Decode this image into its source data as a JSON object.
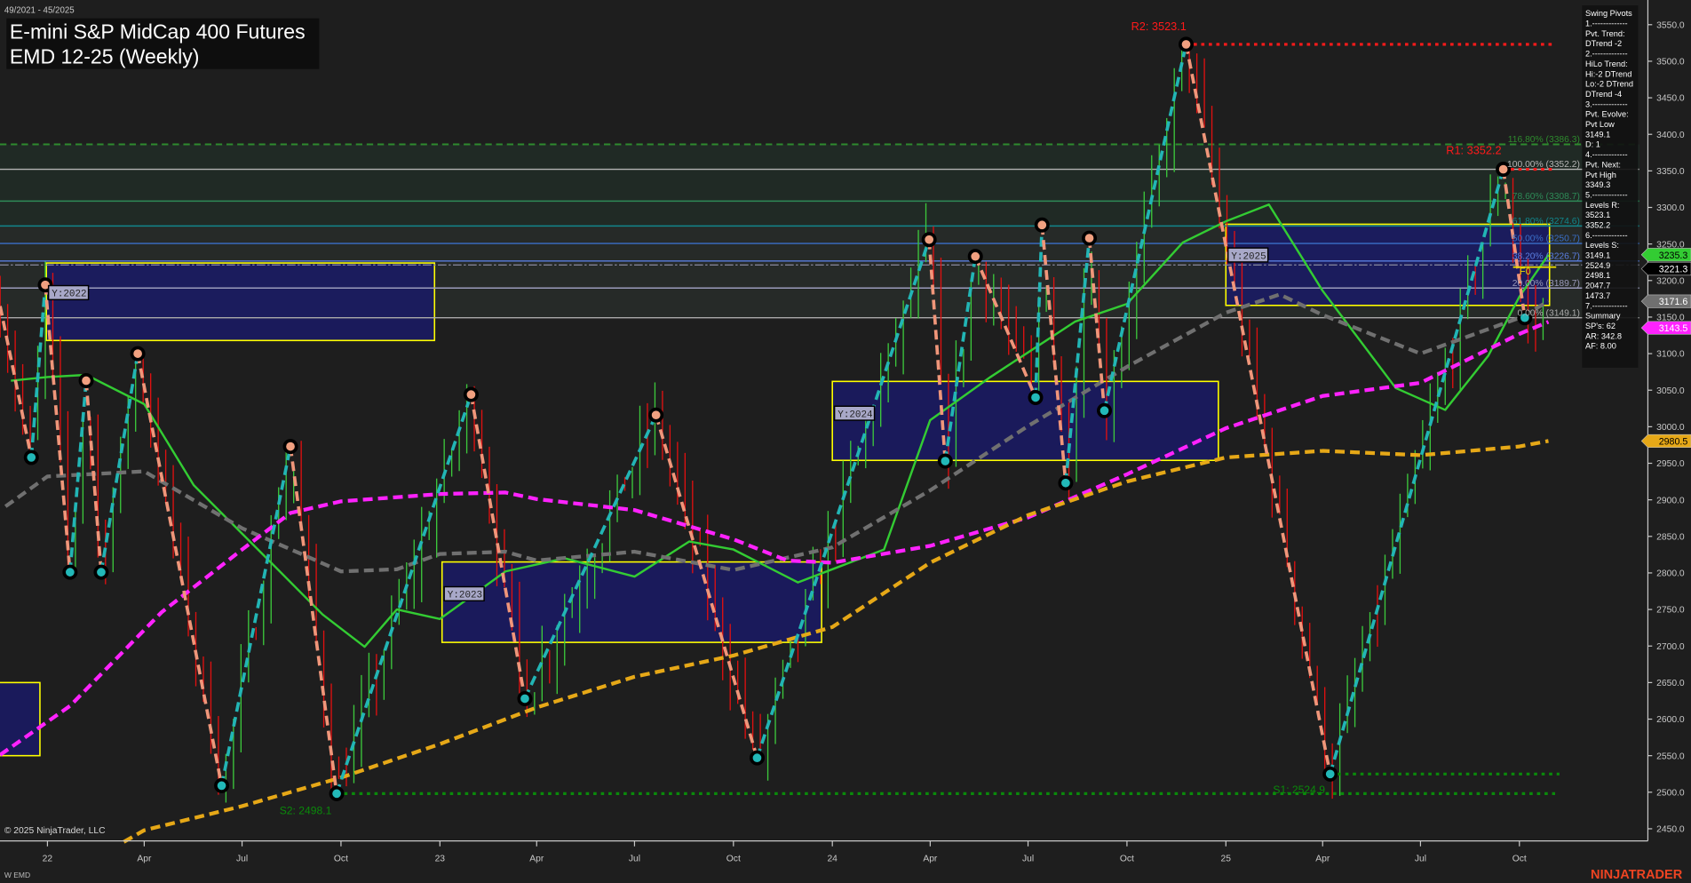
{
  "header": {
    "date_range": "49/2021 - 45/2025",
    "title_line1": "E-mini S&P MidCap 400 Futures",
    "title_line2": "EMD 12-25 (Weekly)"
  },
  "footer": {
    "copyright": "© 2025 NinjaTrader, LLC",
    "instrument_code": "W EMD",
    "brand": "NINJATRADER"
  },
  "info_panel": {
    "lines": [
      "Swing Pivots",
      "1.-------------",
      "Pvt. Trend:",
      "DTrend -2",
      "2.-------------",
      "HiLo Trend:",
      "Hi:-2 DTrend",
      "Lo:-2 DTrend",
      "DTrend -4",
      "3.-------------",
      "Pvt. Evolve:",
      "Pvt Low",
      "3149.1",
      "D: 1",
      "4.-------------",
      "Pvt. Next:",
      "Pvt High",
      "3349.3",
      "5.-------------",
      "Levels R:",
      "3523.1",
      "3352.2",
      "6.-------------",
      "Levels S:",
      "3149.1",
      "2524.9",
      "2498.1",
      "2047.7",
      "1473.7",
      "7.-------------",
      "Summary",
      "SP's: 62",
      "AR: 342.8",
      "AF: 8.00"
    ]
  },
  "chart_data": {
    "type": "line",
    "bar_style": "weekly OHLC bars",
    "ylim": [
      2430,
      3570
    ],
    "y_ticks": [
      "3550.0",
      "3500.0",
      "3450.0",
      "3400.0",
      "3350.0",
      "3300.0",
      "3250.0",
      "3200.0",
      "3150.0",
      "3100.0",
      "3050.0",
      "3000.0",
      "2950.0",
      "2900.0",
      "2850.0",
      "2800.0",
      "2750.0",
      "2700.0",
      "2650.0",
      "2600.0",
      "2550.0",
      "2500.0",
      "2450.0"
    ],
    "x_ticks": [
      {
        "label": "22",
        "date": "2022-01-01"
      },
      {
        "label": "Apr",
        "date": "2022-04-01"
      },
      {
        "label": "Jul",
        "date": "2022-07-01"
      },
      {
        "label": "Oct",
        "date": "2022-10-01"
      },
      {
        "label": "23",
        "date": "2023-01-01"
      },
      {
        "label": "Apr",
        "date": "2023-04-01"
      },
      {
        "label": "Jul",
        "date": "2023-07-01"
      },
      {
        "label": "Oct",
        "date": "2023-10-01"
      },
      {
        "label": "24",
        "date": "2024-01-01"
      },
      {
        "label": "Apr",
        "date": "2024-04-01"
      },
      {
        "label": "Jul",
        "date": "2024-07-01"
      },
      {
        "label": "Oct",
        "date": "2024-10-01"
      },
      {
        "label": "25",
        "date": "2025-01-01"
      },
      {
        "label": "Apr",
        "date": "2025-04-01"
      },
      {
        "label": "Jul",
        "date": "2025-07-01"
      },
      {
        "label": "Oct",
        "date": "2025-10-01"
      }
    ],
    "grid": false,
    "colors": {
      "background": "#1e1e1e",
      "up_bar": "#3cc83c",
      "down_bar": "#e01010",
      "zigzag_up": "#22b5b5",
      "zigzag_down": "#f0967a",
      "pivot_high": "#f0a080",
      "pivot_low": "#22b8b8",
      "year_box_fill": "#1a1a66",
      "year_box_border": "#ffff00"
    },
    "swing_pivots": [
      {
        "date": "2021-11-18",
        "price": 3165,
        "type": "high"
      },
      {
        "date": "2021-12-17",
        "price": 2958,
        "type": "low"
      },
      {
        "date": "2021-12-30",
        "price": 3194,
        "type": "high"
      },
      {
        "date": "2022-01-22",
        "price": 2801,
        "type": "low"
      },
      {
        "date": "2022-02-06",
        "price": 3063,
        "type": "high"
      },
      {
        "date": "2022-02-20",
        "price": 2801,
        "type": "low"
      },
      {
        "date": "2022-03-26",
        "price": 3100,
        "type": "high"
      },
      {
        "date": "2022-06-12",
        "price": 2509,
        "type": "low"
      },
      {
        "date": "2022-08-15",
        "price": 2973,
        "type": "high"
      },
      {
        "date": "2022-09-27",
        "price": 2498.1,
        "type": "low"
      },
      {
        "date": "2023-01-30",
        "price": 3044,
        "type": "high"
      },
      {
        "date": "2023-03-21",
        "price": 2628,
        "type": "low"
      },
      {
        "date": "2023-07-21",
        "price": 3016,
        "type": "high"
      },
      {
        "date": "2023-10-23",
        "price": 2547,
        "type": "low"
      },
      {
        "date": "2024-03-31",
        "price": 3256,
        "type": "high"
      },
      {
        "date": "2024-04-15",
        "price": 2953,
        "type": "low"
      },
      {
        "date": "2024-05-13",
        "price": 3233,
        "type": "high"
      },
      {
        "date": "2024-07-08",
        "price": 3040,
        "type": "low"
      },
      {
        "date": "2024-07-14",
        "price": 3276,
        "type": "high"
      },
      {
        "date": "2024-08-05",
        "price": 2923,
        "type": "low"
      },
      {
        "date": "2024-08-27",
        "price": 3258,
        "type": "high"
      },
      {
        "date": "2024-09-10",
        "price": 3022,
        "type": "low"
      },
      {
        "date": "2024-11-25",
        "price": 3523.1,
        "type": "high"
      },
      {
        "date": "2025-04-08",
        "price": 2524.9,
        "type": "low"
      },
      {
        "date": "2025-09-16",
        "price": 3352.2,
        "type": "high"
      },
      {
        "date": "2025-10-06",
        "price": 3149.1,
        "type": "low"
      }
    ],
    "levels": [
      {
        "label": "R2: 3523.1",
        "price": 3523.1,
        "from": "2024-11-25",
        "color": "#ff1a1a",
        "style": "dotted"
      },
      {
        "label": "R1: 3352.2",
        "price": 3352.2,
        "from": "2025-09-16",
        "color": "#ff1a1a",
        "style": "dotted"
      },
      {
        "label": "S1: 2524.9",
        "price": 2524.9,
        "from": "2025-04-08",
        "color": "#0a8a0a",
        "style": "dotted"
      },
      {
        "label": "S2: 2498.1",
        "price": 2498.1,
        "from": "2022-09-27",
        "color": "#0a8a0a",
        "style": "dotted"
      }
    ],
    "fib_levels": [
      {
        "label": "116.80% (3386.3)",
        "price": 3386.3,
        "color": "#2e8b2e",
        "style": "dashed"
      },
      {
        "label": "100.00% (3352.2)",
        "price": 3352.2,
        "color": "#b4b4b4",
        "style": "solid"
      },
      {
        "label": "78.60% (3308.7)",
        "price": 3308.7,
        "color": "#2e8b57",
        "style": "solid"
      },
      {
        "label": "61.80% (3274.6)",
        "price": 3274.6,
        "color": "#11868c",
        "style": "solid"
      },
      {
        "label": "50.00% (3250.7)",
        "price": 3250.7,
        "color": "#3a6fc8",
        "style": "solid"
      },
      {
        "label": "38.20% (3226.7)",
        "price": 3226.7,
        "color": "#5a7ee0",
        "style": "solid"
      },
      {
        "label": "20.00% (3189.7)",
        "price": 3189.7,
        "color": "#9a9aba",
        "style": "solid"
      },
      {
        "label": "0.00% (3149.1)",
        "price": 3149.1,
        "color": "#aaaaaa",
        "style": "solid"
      }
    ],
    "fib_marker": {
      "label": "F0",
      "price": 3221.3
    },
    "current_price_line": 3221.3,
    "year_boxes": [
      {
        "label": "",
        "start": "2021-09-01",
        "end": "2021-12-25",
        "high": 2650,
        "low": 2550
      },
      {
        "label": "Y:2022",
        "start": "2021-12-31",
        "end": "2022-12-27",
        "high": 3224,
        "low": 3118
      },
      {
        "label": "Y:2023",
        "start": "2023-01-03",
        "end": "2023-12-22",
        "high": 2815,
        "low": 2705
      },
      {
        "label": "Y:2024",
        "start": "2024-01-01",
        "end": "2024-12-25",
        "high": 3062,
        "low": 2954
      },
      {
        "label": "Y:2025",
        "start": "2025-01-01",
        "end": "2025-10-29",
        "high": 3277,
        "low": 3166
      }
    ],
    "moving_averages": [
      {
        "color": "#33cc33",
        "style": "solid",
        "points": [
          [
            "2021-11-28",
            3063
          ],
          [
            "2022-01-01",
            3068
          ],
          [
            "2022-02-06",
            3071
          ],
          [
            "2022-04-01",
            3031
          ],
          [
            "2022-05-17",
            2920
          ],
          [
            "2022-07-26",
            2817
          ],
          [
            "2022-09-14",
            2743
          ],
          [
            "2022-10-23",
            2699
          ],
          [
            "2022-11-22",
            2750
          ],
          [
            "2023-01-01",
            2737
          ],
          [
            "2023-03-03",
            2802
          ],
          [
            "2023-04-27",
            2820
          ],
          [
            "2023-07-01",
            2795
          ],
          [
            "2023-08-21",
            2843
          ],
          [
            "2023-10-01",
            2832
          ],
          [
            "2023-11-30",
            2787
          ],
          [
            "2024-01-01",
            2805
          ],
          [
            "2024-02-18",
            2832
          ],
          [
            "2024-04-01",
            3009
          ],
          [
            "2024-05-27",
            3068
          ],
          [
            "2024-08-14",
            3144
          ],
          [
            "2024-10-01",
            3168
          ],
          [
            "2024-11-22",
            3252
          ],
          [
            "2025-01-01",
            3281
          ],
          [
            "2025-02-10",
            3304
          ],
          [
            "2025-04-01",
            3186
          ],
          [
            "2025-06-08",
            3053
          ],
          [
            "2025-07-24",
            3023
          ],
          [
            "2025-09-02",
            3097
          ],
          [
            "2025-10-01",
            3178
          ],
          [
            "2025-10-28",
            3235.3
          ]
        ]
      },
      {
        "color": "#707070",
        "style": "dashed",
        "points": [
          [
            "2021-11-23",
            2891
          ],
          [
            "2022-01-01",
            2932
          ],
          [
            "2022-04-01",
            2939
          ],
          [
            "2022-07-01",
            2861
          ],
          [
            "2022-08-25",
            2826
          ],
          [
            "2022-10-01",
            2802
          ],
          [
            "2022-11-22",
            2805
          ],
          [
            "2023-01-01",
            2826
          ],
          [
            "2023-03-03",
            2829
          ],
          [
            "2023-04-01",
            2817
          ],
          [
            "2023-07-01",
            2829
          ],
          [
            "2023-10-01",
            2804
          ],
          [
            "2024-01-01",
            2835
          ],
          [
            "2024-04-01",
            2913
          ],
          [
            "2024-07-01",
            3001
          ],
          [
            "2024-10-01",
            3082
          ],
          [
            "2025-01-01",
            3156
          ],
          [
            "2025-02-20",
            3181
          ],
          [
            "2025-04-01",
            3153
          ],
          [
            "2025-07-01",
            3100
          ],
          [
            "2025-10-01",
            3149
          ],
          [
            "2025-10-28",
            3171.6
          ]
        ]
      },
      {
        "color": "#ff22ff",
        "style": "dashed",
        "points": [
          [
            "2021-11-18",
            2551
          ],
          [
            "2022-01-22",
            2618
          ],
          [
            "2022-04-17",
            2746
          ],
          [
            "2022-07-01",
            2832
          ],
          [
            "2022-08-15",
            2882
          ],
          [
            "2022-10-01",
            2898
          ],
          [
            "2023-01-01",
            2908
          ],
          [
            "2023-03-03",
            2910
          ],
          [
            "2023-04-01",
            2901
          ],
          [
            "2023-07-01",
            2886
          ],
          [
            "2023-10-01",
            2846
          ],
          [
            "2023-11-20",
            2817
          ],
          [
            "2024-01-01",
            2814
          ],
          [
            "2024-04-01",
            2837
          ],
          [
            "2024-07-01",
            2876
          ],
          [
            "2024-10-01",
            2935
          ],
          [
            "2025-01-01",
            2998
          ],
          [
            "2025-04-01",
            3042
          ],
          [
            "2025-07-01",
            3060
          ],
          [
            "2025-10-01",
            3127
          ],
          [
            "2025-10-28",
            3143.5
          ]
        ]
      },
      {
        "color": "#e6a817",
        "style": "dashed",
        "points": [
          [
            "2022-03-13",
            2432
          ],
          [
            "2022-04-01",
            2448
          ],
          [
            "2022-07-01",
            2481
          ],
          [
            "2022-10-01",
            2520
          ],
          [
            "2023-01-01",
            2566
          ],
          [
            "2023-04-01",
            2616
          ],
          [
            "2023-07-01",
            2658
          ],
          [
            "2023-10-01",
            2687
          ],
          [
            "2024-01-01",
            2726
          ],
          [
            "2024-04-01",
            2814
          ],
          [
            "2024-07-01",
            2879
          ],
          [
            "2024-10-01",
            2925
          ],
          [
            "2025-01-01",
            2958
          ],
          [
            "2025-04-01",
            2967
          ],
          [
            "2025-07-01",
            2961
          ],
          [
            "2025-10-01",
            2973
          ],
          [
            "2025-10-28",
            2980.5
          ]
        ]
      }
    ],
    "price_tags": [
      {
        "value": "3235.3",
        "price": 3235.3,
        "bg": "#33cc33",
        "fg": "#000000"
      },
      {
        "value": "3221.3",
        "price": 3221.3,
        "bg": "#000000",
        "fg": "#ffffff"
      },
      {
        "value": "3171.6",
        "price": 3171.6,
        "bg": "#707070",
        "fg": "#ffffff"
      },
      {
        "value": "3143.5",
        "price": 3143.5,
        "bg": "#ff22ff",
        "fg": "#ffffff"
      },
      {
        "value": "2980.5",
        "price": 2980.5,
        "bg": "#e6a817",
        "fg": "#000000"
      }
    ]
  }
}
